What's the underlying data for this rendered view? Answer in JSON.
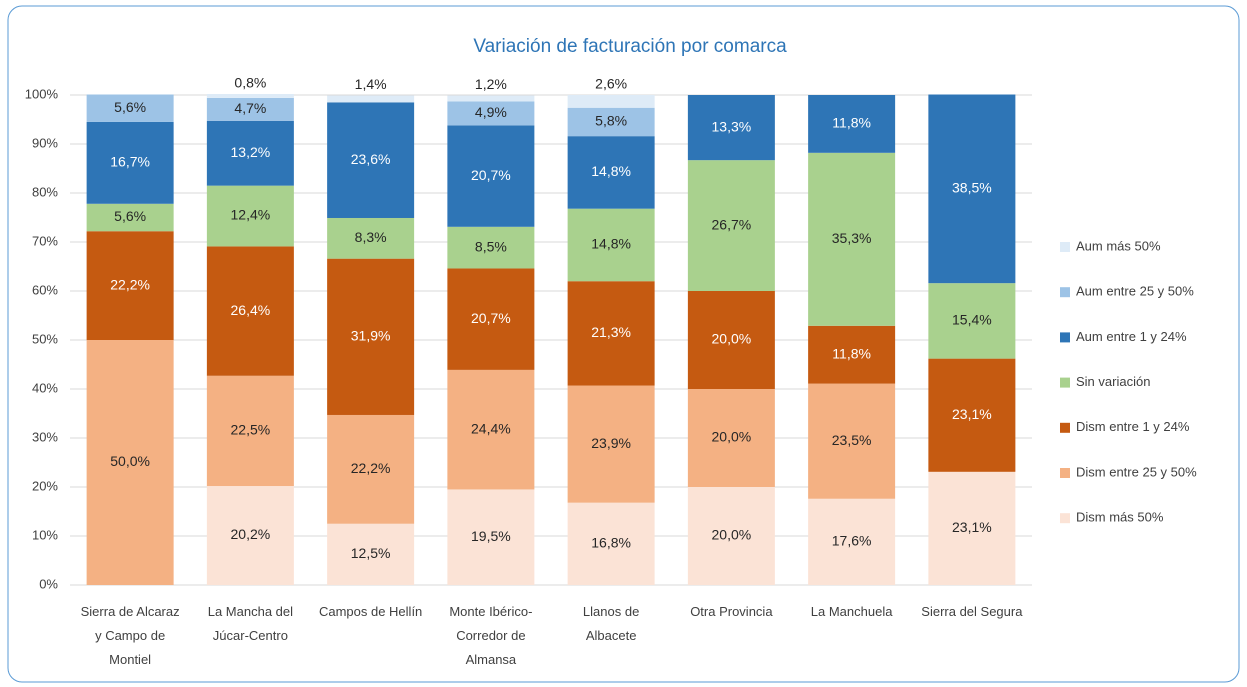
{
  "chart_data": {
    "type": "stacked_bar",
    "title": "Variación de facturación por comarca",
    "categories": [
      "Sierra de Alcaraz y Campo de Montiel",
      "La Mancha del Júcar-Centro",
      "Campos de Hellín",
      "Monte Ibérico-Corredor de Almansa",
      "Llanos de Albacete",
      "Otra Provincia",
      "La Manchuela",
      "Sierra del Segura"
    ],
    "series": [
      {
        "name": "Dism más 50%",
        "color": "#fbe3d6",
        "values": [
          0,
          20.2,
          12.5,
          19.5,
          16.8,
          20.0,
          17.6,
          23.1
        ],
        "value_labels": [
          null,
          "20,2%",
          "12,5%",
          "19,5%",
          "16,8%",
          "20,0%",
          "17,6%",
          "23,1%"
        ]
      },
      {
        "name": "Dism entre 25 y 50%",
        "color": "#f4b183",
        "values": [
          50.0,
          22.5,
          22.2,
          24.4,
          23.9,
          20.0,
          23.5,
          0
        ],
        "value_labels": [
          "50,0%",
          "22,5%",
          "22,2%",
          "24,4%",
          "23,9%",
          "20,0%",
          "23,5%",
          null
        ]
      },
      {
        "name": "Dism entre 1 y 24%",
        "color": "#c55a11",
        "values": [
          22.2,
          26.4,
          31.9,
          20.7,
          21.3,
          20.0,
          11.8,
          23.1
        ],
        "value_labels": [
          "22,2%",
          "26,4%",
          "31,9%",
          "20,7%",
          "21,3%",
          "20,0%",
          "11,8%",
          "23,1%"
        ]
      },
      {
        "name": "Sin variación",
        "color": "#a9d18e",
        "values": [
          5.6,
          12.4,
          8.3,
          8.5,
          14.8,
          26.7,
          35.3,
          15.4
        ],
        "value_labels": [
          "5,6%",
          "12,4%",
          "8,3%",
          "8,5%",
          "14,8%",
          "26,7%",
          "35,3%",
          "15,4%"
        ]
      },
      {
        "name": "Aum entre 1 y 24%",
        "color": "#2e75b6",
        "values": [
          16.7,
          13.2,
          23.6,
          20.7,
          14.8,
          13.3,
          11.8,
          38.5
        ],
        "value_labels": [
          "16,7%",
          "13,2%",
          "23,6%",
          "20,7%",
          "14,8%",
          "13,3%",
          "11,8%",
          "38,5%"
        ]
      },
      {
        "name": "Aum entre 25 y 50%",
        "color": "#9dc3e6",
        "values": [
          5.6,
          4.7,
          0,
          4.9,
          5.8,
          0,
          0,
          0
        ],
        "value_labels": [
          "5,6%",
          "4,7%",
          null,
          "4,9%",
          "5,8%",
          null,
          null,
          null
        ]
      },
      {
        "name": "Aum más 50%",
        "color": "#deebf7",
        "values": [
          0,
          0.8,
          1.4,
          1.2,
          2.6,
          0,
          0,
          0
        ],
        "value_labels": [
          null,
          "0,8%",
          "1,4%",
          "1,2%",
          "2,6%",
          null,
          null,
          null
        ]
      }
    ],
    "ylim": [
      0,
      100
    ],
    "yticks": [
      {
        "value": 0,
        "label": "0%"
      },
      {
        "value": 10,
        "label": "10%"
      },
      {
        "value": 20,
        "label": "20%"
      },
      {
        "value": 30,
        "label": "30%"
      },
      {
        "value": 40,
        "label": "40%"
      },
      {
        "value": 50,
        "label": "50%"
      },
      {
        "value": 60,
        "label": "60%"
      },
      {
        "value": 70,
        "label": "70%"
      },
      {
        "value": 80,
        "label": "80%"
      },
      {
        "value": 90,
        "label": "90%"
      },
      {
        "value": 100,
        "label": "100%"
      }
    ],
    "grid": true,
    "legend": "right"
  }
}
